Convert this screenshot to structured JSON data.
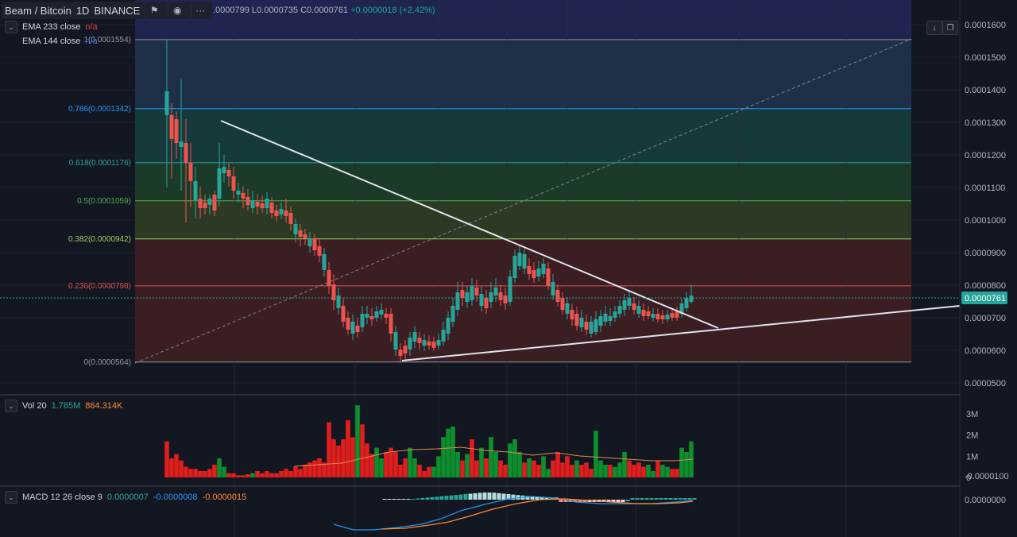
{
  "header": {
    "symbol": "Beam / Bitcoin",
    "interval": "1D",
    "exchange": "BINANCE",
    "ohlc_text": ".0000799 L0.0000735 C0.0000761",
    "change_text": "+0.0000018 (+2.42%)"
  },
  "indicators": {
    "ema1": {
      "label": "EMA 233 close",
      "value": "n/a"
    },
    "ema2": {
      "label": "EMA 144 close",
      "value": "n/a"
    },
    "vol": {
      "label": "Vol 20",
      "v1": "1.785M",
      "v2": "864.314K"
    },
    "macd": {
      "label": "MACD 12 26 close 9",
      "v1": "0.0000007",
      "v2": "-0.0000008",
      "v3": "-0.0000015"
    }
  },
  "price_axis": {
    "labels": [
      "0.0001600",
      "0.0001500",
      "0.0001400",
      "0.0001300",
      "0.0001200",
      "0.0001100",
      "0.0001000",
      "0.0000900",
      "0.0000800",
      "0.0000700",
      "0.0000600",
      "0.0000500"
    ],
    "values": [
      0.00016,
      0.00015,
      0.00014,
      0.00013,
      0.00012,
      0.00011,
      0.0001,
      9e-05,
      8e-05,
      7e-05,
      6e-05,
      5e-05
    ],
    "current_label": "0.0000761",
    "current_value": 7.61e-05
  },
  "fib_levels": [
    {
      "label": "1(0.0001554)",
      "value": 0.0001554,
      "line": "#9598a1",
      "fill": "#2a2e39"
    },
    {
      "label": "0.786(0.0001342)",
      "value": 0.0001342,
      "line": "#2196f3",
      "fill": "#1e3048"
    },
    {
      "label": "0.618(0.0001176)",
      "value": 0.0001176,
      "line": "#26a69a",
      "fill": "#163a3c"
    },
    {
      "label": "0.5(0.0001059)",
      "value": 0.0001059,
      "line": "#4caf50",
      "fill": "#1b3a27"
    },
    {
      "label": "0.382(0.0000942)",
      "value": 9.42e-05,
      "line": "#9ccc65",
      "fill": "#2d3a23"
    },
    {
      "label": "0.236(0.0000798)",
      "value": 7.98e-05,
      "line": "#ef5350",
      "fill": "#3a1e22"
    },
    {
      "label": "0(0.0000564)",
      "value": 5.64e-05,
      "line": "#9598a1",
      "fill": "#3a1e22"
    }
  ],
  "volume_axis": {
    "labels": [
      "3M",
      "2M",
      "1M",
      "0"
    ],
    "values": [
      3,
      2,
      1,
      0
    ]
  },
  "macd_axis": {
    "labels": [
      "0.0000000",
      "-0.0000100"
    ],
    "values": [
      0,
      -1e-05
    ]
  },
  "colors": {
    "up": "#26a69a",
    "down": "#ef5350",
    "vol_up": "#0d8f2e",
    "vol_down": "#e01e1e",
    "bg": "#131722",
    "accent": "#2962ff",
    "pill": "#26a69a"
  }
}
